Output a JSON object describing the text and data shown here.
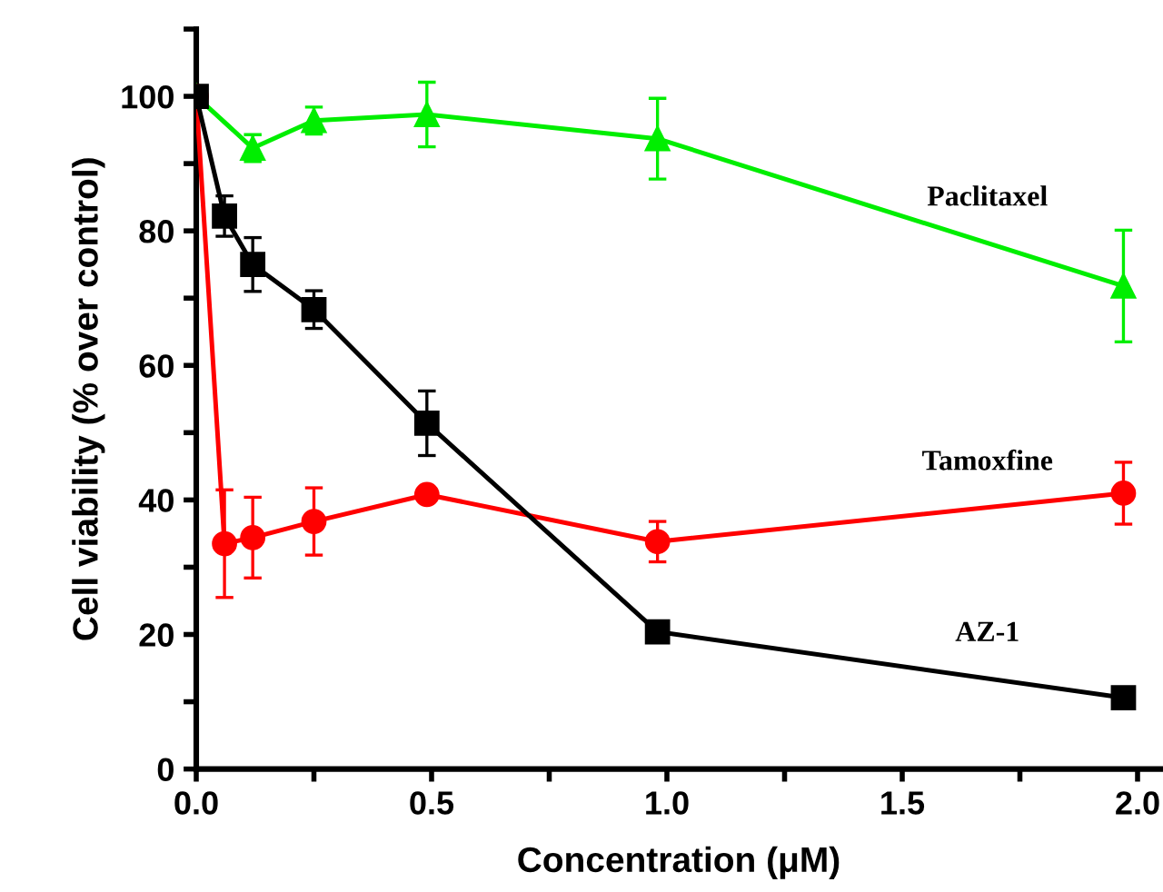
{
  "chart_data": {
    "type": "line",
    "xlabel": "Concentration (μM)",
    "ylabel": "Cell viability (% over control)",
    "xlim": [
      0,
      2.05
    ],
    "ylim": [
      0,
      110
    ],
    "xticks": [
      {
        "value": 0,
        "label": "0.0"
      },
      {
        "value": 0.25,
        "label": null
      },
      {
        "value": 0.5,
        "label": "0.5"
      },
      {
        "value": 0.75,
        "label": null
      },
      {
        "value": 1.0,
        "label": "1.0"
      },
      {
        "value": 1.25,
        "label": null
      },
      {
        "value": 1.5,
        "label": "1.5"
      },
      {
        "value": 1.75,
        "label": null
      },
      {
        "value": 2.0,
        "label": "2.0"
      }
    ],
    "yticks": [
      0,
      {
        "value": 10,
        "label": null
      },
      20,
      {
        "value": 30,
        "label": null
      },
      40,
      {
        "value": 50,
        "label": null
      },
      60,
      {
        "value": 70,
        "label": null
      },
      80,
      {
        "value": 90,
        "label": null
      },
      100,
      {
        "value": 110,
        "label": null
      }
    ],
    "grid": false,
    "legend": false,
    "line_style": "solid",
    "series": [
      {
        "name": "Paclitaxel",
        "color": "#00ee00",
        "marker": "triangle",
        "x": [
          0,
          0.12,
          0.25,
          0.49,
          0.98,
          1.97
        ],
        "values": [
          100,
          92.3,
          96.4,
          97.3,
          93.7,
          71.8
        ],
        "errors": [
          null,
          2,
          2,
          4.8,
          6,
          8.3
        ]
      },
      {
        "name": "Tamoxfine",
        "color": "#ff0000",
        "marker": "circle",
        "x": [
          0,
          0.06,
          0.12,
          0.25,
          0.49,
          0.98,
          1.97
        ],
        "values": [
          100,
          33.5,
          34.4,
          36.8,
          40.8,
          33.8,
          41.0
        ],
        "errors": [
          null,
          8,
          6,
          5,
          null,
          3,
          4.6
        ]
      },
      {
        "name": "AZ-1",
        "color": "#000000",
        "marker": "square",
        "x": [
          0,
          0.06,
          0.12,
          0.25,
          0.49,
          0.98,
          1.97
        ],
        "values": [
          100,
          82.2,
          75.0,
          68.3,
          51.4,
          20.4,
          10.6
        ],
        "errors": [
          null,
          3,
          4,
          2.8,
          4.8,
          null,
          1.5
        ]
      }
    ]
  }
}
